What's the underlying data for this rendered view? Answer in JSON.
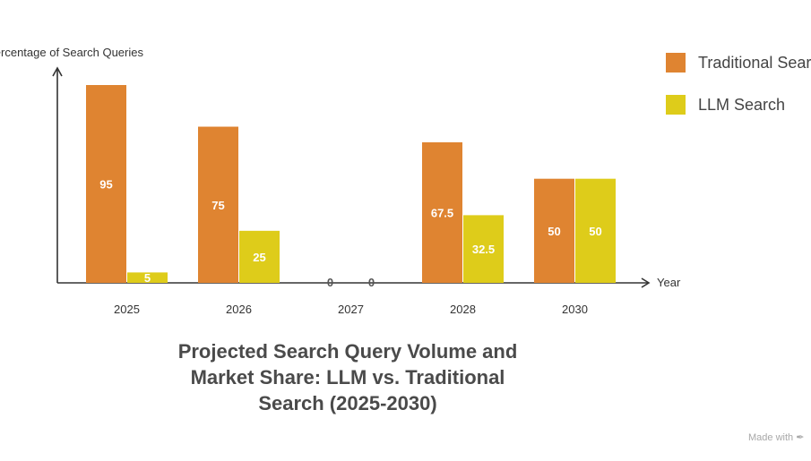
{
  "chart_data": {
    "type": "bar",
    "title": "Projected Search Query Volume and Market Share: LLM vs. Traditional Search (2025-2030)",
    "xlabel": "Year",
    "ylabel": "Percentage of Search Queries",
    "categories": [
      "2025",
      "2026",
      "2027",
      "2028",
      "2030"
    ],
    "series": [
      {
        "name": "Traditional Search",
        "color": "#DF8431",
        "values": [
          95,
          75,
          0,
          67.5,
          50
        ],
        "labels": [
          "95",
          "75",
          "0",
          "67.5",
          "50"
        ]
      },
      {
        "name": "LLM Search",
        "color": "#DECC1A",
        "values": [
          5,
          25,
          0,
          32.5,
          50
        ],
        "labels": [
          "5",
          "25",
          "0",
          "32.5",
          "50"
        ]
      }
    ],
    "ylim": [
      0,
      100
    ],
    "grid": false,
    "legend_position": "top-right"
  },
  "footer": {
    "watermark": "Made with"
  }
}
